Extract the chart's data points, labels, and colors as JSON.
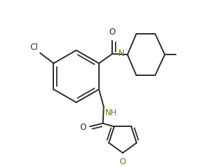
{
  "bg_color": "#ffffff",
  "line_color": "#2a2a2a",
  "heteroatom_color": "#8B6914",
  "line_width": 1.4,
  "dbo": 0.018,
  "figsize": [
    3.12,
    2.42
  ],
  "dpi": 100,
  "xlim": [
    0.0,
    1.0
  ],
  "ylim": [
    0.0,
    1.0
  ]
}
